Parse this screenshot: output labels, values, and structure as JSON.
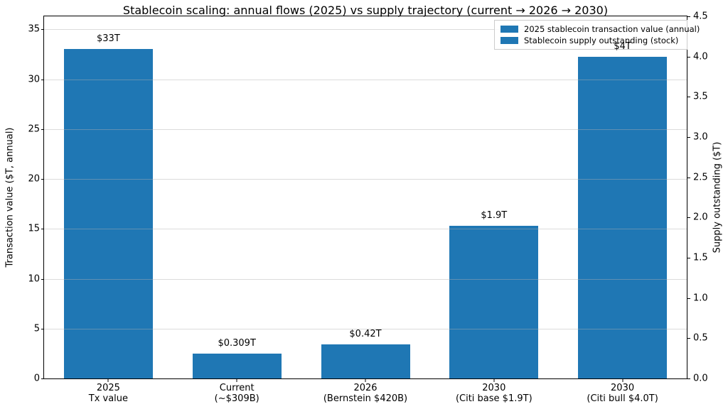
{
  "chart_data": {
    "type": "bar",
    "title": "Stablecoin scaling: annual flows (2025) vs supply trajectory (current → 2026 → 2030)",
    "left_axis": {
      "label": "Transaction value ($T, annual)",
      "ticks": [
        0,
        5,
        10,
        15,
        20,
        25,
        30,
        35
      ],
      "max": 36.3,
      "min": 0
    },
    "right_axis": {
      "label": "Supply outstanding ($T)",
      "ticks": [
        "0.0",
        "0.5",
        "1.0",
        "1.5",
        "2.0",
        "2.5",
        "3.0",
        "3.5",
        "4.0",
        "4.5"
      ],
      "max": 4.5,
      "min": 0
    },
    "legend": [
      "2025 stablecoin transaction value (annual)",
      "Stablecoin supply outstanding (stock)"
    ],
    "bar_color": "#1f77b4",
    "grid": "horizontal, at left-axis ticks",
    "categories": [
      [
        "2025",
        "Tx value"
      ],
      [
        "Current",
        "(~$309B)"
      ],
      [
        "2026",
        "(Bernstein $420B)"
      ],
      [
        "2030",
        "(Citi base $1.9T)"
      ],
      [
        "2030",
        "(Citi bull $4.0T)"
      ]
    ],
    "bars": [
      {
        "series": "2025 stablecoin transaction value (annual)",
        "axis": "left",
        "value": 33,
        "label": "$33T"
      },
      {
        "series": "Stablecoin supply outstanding (stock)",
        "axis": "right",
        "value": 0.309,
        "label": "$0.309T"
      },
      {
        "series": "Stablecoin supply outstanding (stock)",
        "axis": "right",
        "value": 0.42,
        "label": "$0.42T"
      },
      {
        "series": "Stablecoin supply outstanding (stock)",
        "axis": "right",
        "value": 1.9,
        "label": "$1.9T"
      },
      {
        "series": "Stablecoin supply outstanding (stock)",
        "axis": "right",
        "value": 4.0,
        "label": "$4T"
      }
    ]
  }
}
